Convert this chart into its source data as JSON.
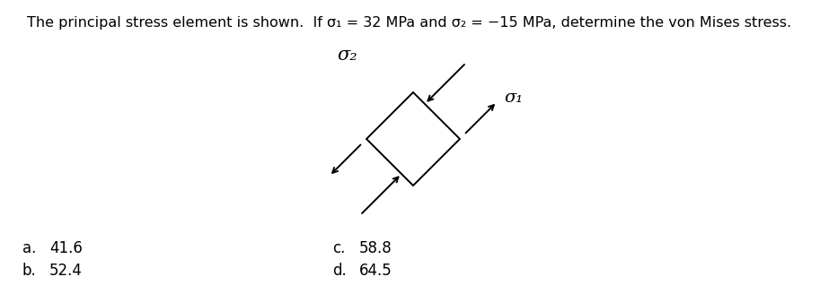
{
  "title": "The principal stress element is shown.  If σ₁ = 32 MPa and σ₂ = −15 MPa, determine the von Mises stress.",
  "title_fontsize": 11.5,
  "background_color": "#ffffff",
  "text_color": "#000000",
  "sigma2_label": "σ₂",
  "sigma1_label": "σ₁",
  "answers": [
    {
      "label": "a.",
      "value": "41.6",
      "col": 0
    },
    {
      "label": "b.",
      "value": "52.4",
      "col": 0
    },
    {
      "label": "c.",
      "value": "58.8",
      "col": 1
    },
    {
      "label": "d.",
      "value": "64.5",
      "col": 1
    }
  ],
  "arrow_color": "#000000",
  "line_color": "#000000",
  "line_width": 1.4
}
